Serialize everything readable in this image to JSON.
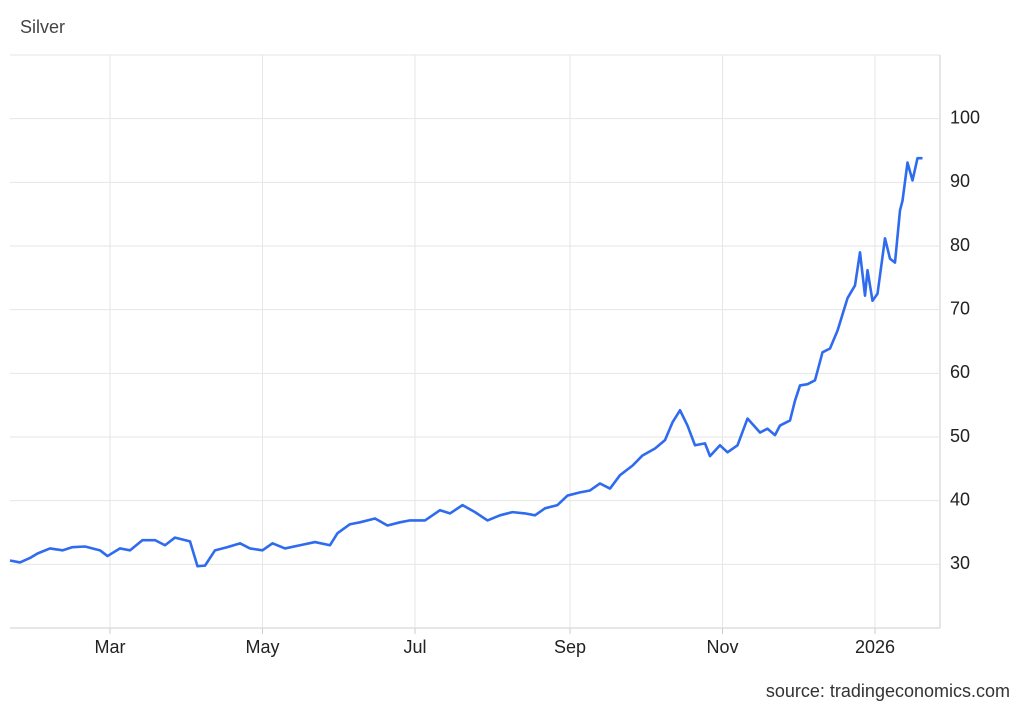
{
  "chart_data": {
    "type": "line",
    "title": "Silver",
    "source": "source: tradingeconomics.com",
    "x": [
      19,
      23,
      27,
      30,
      35,
      40,
      44,
      49,
      55,
      58,
      63,
      67,
      72,
      77,
      81,
      85,
      91,
      94,
      97,
      101,
      106,
      111,
      115,
      120,
      124,
      129,
      135,
      141,
      147,
      150,
      155,
      159,
      165,
      170,
      175,
      179,
      185,
      191,
      195,
      200,
      205,
      210,
      215,
      220,
      225,
      229,
      233,
      238,
      242,
      247,
      251,
      255,
      259,
      263,
      268,
      272,
      277,
      281,
      284,
      287,
      290,
      293,
      297,
      299,
      303,
      306,
      310,
      314,
      319,
      322,
      325,
      327,
      331,
      333,
      335,
      338,
      341,
      344,
      347,
      350,
      354,
      357,
      359,
      361,
      362,
      364,
      366,
      369,
      371,
      373,
      375,
      376,
      378,
      380,
      382,
      384
    ],
    "values": [
      30.6,
      30.3,
      31,
      31.7,
      32.5,
      32.2,
      32.7,
      32.8,
      32.2,
      31.3,
      32.5,
      32.2,
      33.8,
      33.8,
      33,
      34.2,
      33.6,
      29.7,
      29.8,
      32.2,
      32.7,
      33.3,
      32.5,
      32.2,
      33.3,
      32.5,
      33,
      33.5,
      33,
      34.9,
      36.3,
      36.6,
      37.2,
      36.1,
      36.6,
      36.9,
      36.9,
      38.5,
      38,
      39.3,
      38.2,
      36.9,
      37.7,
      38.2,
      38,
      37.7,
      38.8,
      39.3,
      40.8,
      41.3,
      41.6,
      42.7,
      41.9,
      44,
      45.5,
      47.1,
      48.2,
      49.5,
      52.3,
      54.2,
      51.8,
      48.7,
      49,
      47,
      48.7,
      47.6,
      48.7,
      52.9,
      50.7,
      51.3,
      50.3,
      51.8,
      52.6,
      55.7,
      58.1,
      58.3,
      58.9,
      63.3,
      63.9,
      66.7,
      71.8,
      73.8,
      79,
      72.2,
      76.2,
      71.4,
      72.5,
      81.2,
      78,
      77.4,
      85.6,
      87.1,
      93.1,
      90.3,
      93.8,
      93.8
    ],
    "color": "#2f6bef",
    "xlim": [
      19,
      391
    ],
    "xticks": [
      {
        "value": 59,
        "label": "Mar"
      },
      {
        "value": 120,
        "label": "May"
      },
      {
        "value": 181,
        "label": "Jul"
      },
      {
        "value": 243,
        "label": "Sep"
      },
      {
        "value": 304,
        "label": "Nov"
      },
      {
        "value": 365,
        "label": "2026"
      }
    ],
    "ylim": [
      20,
      110
    ],
    "yticks": [
      30,
      40,
      50,
      60,
      70,
      80,
      90,
      100
    ],
    "grid": true
  }
}
